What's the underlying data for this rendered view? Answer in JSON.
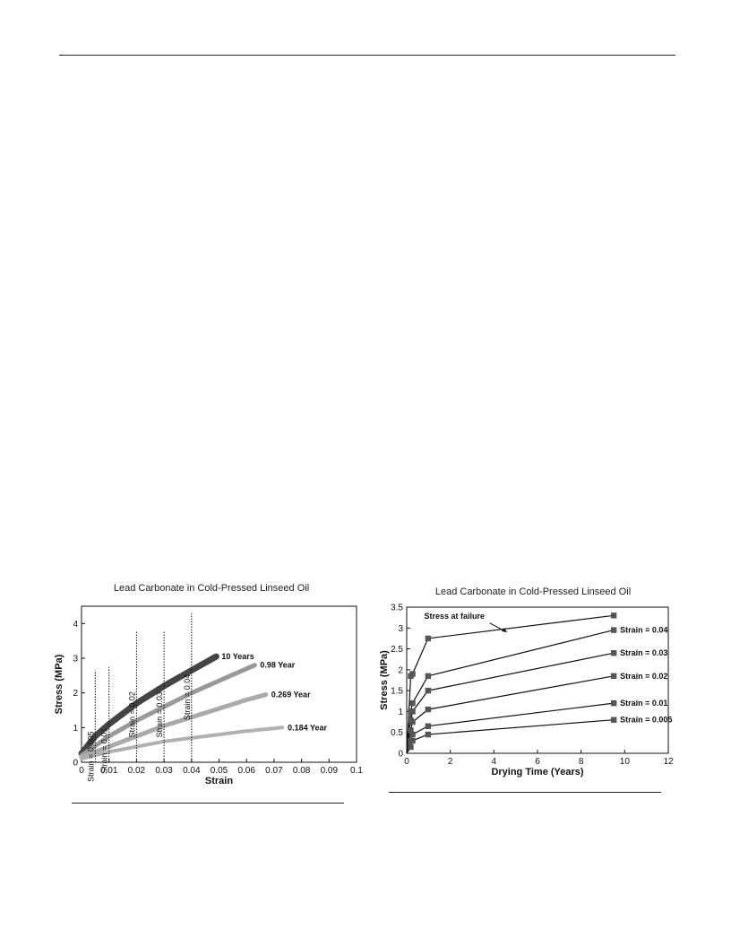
{
  "chart_data": [
    {
      "type": "line",
      "title": "Lead Carbonate in Cold-Pressed Linseed Oil",
      "xlabel": "Strain",
      "ylabel": "Stress (MPa)",
      "xlim": [
        0,
        0.1
      ],
      "ylim": [
        0,
        4.5
      ],
      "x_ticks": [
        "0",
        "0.01",
        "0.02",
        "0.03",
        "0.04",
        "0.05",
        "0.06",
        "0.07",
        "0.08",
        "0.09",
        "0.1"
      ],
      "y_ticks": [
        "0",
        "1",
        "2",
        "3",
        "4"
      ],
      "grid": false,
      "series": [
        {
          "name": "10 Years",
          "color": "#444444",
          "x": [
            0,
            0.005,
            0.01,
            0.02,
            0.03,
            0.04,
            0.049
          ],
          "y": [
            0.25,
            0.75,
            1.1,
            1.7,
            2.2,
            2.65,
            3.05
          ]
        },
        {
          "name": "0.98 Year",
          "color": "#999999",
          "x": [
            0,
            0.01,
            0.02,
            0.03,
            0.04,
            0.05,
            0.063
          ],
          "y": [
            0.2,
            0.75,
            1.2,
            1.6,
            2.0,
            2.35,
            2.8
          ]
        },
        {
          "name": "0.269 Year",
          "color": "#aaaaaa",
          "x": [
            0,
            0.01,
            0.02,
            0.03,
            0.04,
            0.05,
            0.06,
            0.067
          ],
          "y": [
            0.15,
            0.45,
            0.75,
            1.05,
            1.3,
            1.55,
            1.8,
            1.95
          ]
        },
        {
          "name": "0.184 Year",
          "color": "#b0b0b0",
          "x": [
            0,
            0.01,
            0.02,
            0.03,
            0.04,
            0.05,
            0.06,
            0.073
          ],
          "y": [
            0.1,
            0.3,
            0.45,
            0.6,
            0.7,
            0.8,
            0.9,
            1.0
          ]
        }
      ],
      "vlines": [
        {
          "x": 0.005,
          "label": "Strain = 0.005",
          "top": 2.65
        },
        {
          "x": 0.01,
          "label": "Strain = 0.01",
          "top": 2.75
        },
        {
          "x": 0.02,
          "label": "Strain = 0.02",
          "top": 3.8
        },
        {
          "x": 0.03,
          "label": "Strain = 0.03",
          "top": 3.8
        },
        {
          "x": 0.04,
          "label": "Strain = 0.04",
          "top": 4.3
        }
      ]
    },
    {
      "type": "line",
      "title": "Lead Carbonate in Cold-Pressed Linseed Oil",
      "xlabel": "Drying Time (Years)",
      "ylabel": "Stress (MPa)",
      "xlim": [
        0,
        12
      ],
      "ylim": [
        0,
        3.5
      ],
      "x_ticks": [
        "0",
        "2",
        "4",
        "6",
        "8",
        "10",
        "12"
      ],
      "y_ticks": [
        "0",
        "0.5",
        "1",
        "1.5",
        "2",
        "2.5",
        "3",
        "3.5"
      ],
      "grid": false,
      "x": [
        0.184,
        0.269,
        0.98,
        9.5
      ],
      "series": [
        {
          "name": "Stress at failure",
          "values": [
            1.85,
            1.9,
            2.75,
            3.3
          ]
        },
        {
          "name": "Strain = 0.04",
          "values": [
            1.0,
            1.2,
            1.85,
            2.95
          ]
        },
        {
          "name": "Strain = 0.03",
          "values": [
            0.8,
            1.0,
            1.5,
            2.4
          ]
        },
        {
          "name": "Strain = 0.02",
          "values": [
            0.55,
            0.75,
            1.05,
            1.85
          ]
        },
        {
          "name": "Strain = 0.01",
          "values": [
            0.3,
            0.45,
            0.65,
            1.2
          ]
        },
        {
          "name": "Strain = 0.005",
          "values": [
            0.15,
            0.3,
            0.45,
            0.8
          ]
        }
      ]
    }
  ]
}
